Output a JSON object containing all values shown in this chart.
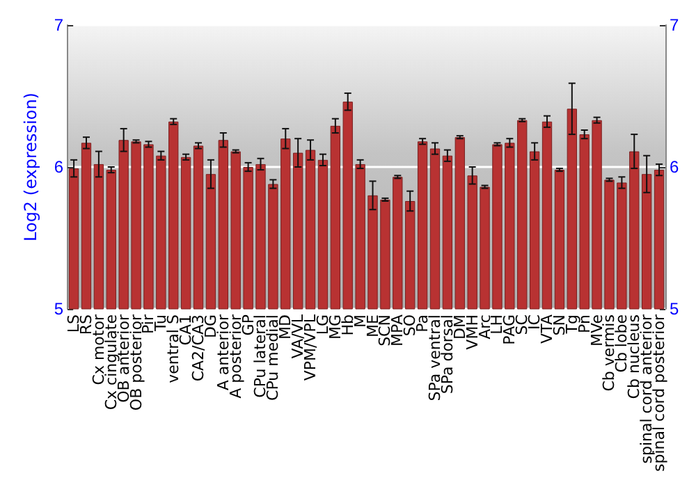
{
  "chart_data": {
    "type": "bar",
    "ylabel": "Log2 (expression)",
    "categories": [
      "LS",
      "RS",
      "Cx motor",
      "Cx cingulate",
      "OB anterior",
      "OB posterior",
      "Pir",
      "Tu",
      "ventral S",
      "CA1",
      "CA2/CA3",
      "DG",
      "A anterior",
      "A posterior",
      "GP",
      "CPu lateral",
      "CPu medial",
      "MD",
      "VA/VL",
      "VPM/VPL",
      "LG",
      "MG",
      "Hb",
      "M",
      "ME",
      "SCN",
      "MPA",
      "SO",
      "Pa",
      "SPa ventral",
      "SPa dorsal",
      "DM",
      "VMH",
      "Arc",
      "LH",
      "PAG",
      "SC",
      "IC",
      "VTA",
      "SN",
      "Tg",
      "Pn",
      "MVe",
      "Cb vermis",
      "Cb lobe",
      "Cb nucleus",
      "spinal cord anterior",
      "spinal cord posterior"
    ],
    "values": [
      5.99,
      6.17,
      6.02,
      5.98,
      6.19,
      6.18,
      6.16,
      6.08,
      6.32,
      6.07,
      6.15,
      5.95,
      6.19,
      6.11,
      6.0,
      6.02,
      5.88,
      6.2,
      6.1,
      6.12,
      6.05,
      6.29,
      6.46,
      6.02,
      5.8,
      5.77,
      5.93,
      5.76,
      6.18,
      6.13,
      6.08,
      6.21,
      5.94,
      5.86,
      6.16,
      6.17,
      6.33,
      6.11,
      6.32,
      5.98,
      6.41,
      6.23,
      6.33,
      5.91,
      5.89,
      6.11,
      5.95,
      5.98
    ],
    "errors": [
      0.06,
      0.04,
      0.09,
      0.02,
      0.08,
      0.01,
      0.02,
      0.03,
      0.02,
      0.02,
      0.02,
      0.1,
      0.05,
      0.01,
      0.03,
      0.04,
      0.03,
      0.07,
      0.1,
      0.07,
      0.04,
      0.05,
      0.06,
      0.03,
      0.1,
      0.01,
      0.01,
      0.07,
      0.02,
      0.04,
      0.04,
      0.01,
      0.06,
      0.01,
      0.01,
      0.03,
      0.01,
      0.06,
      0.04,
      0.01,
      0.18,
      0.03,
      0.02,
      0.01,
      0.04,
      0.12,
      0.13,
      0.04
    ],
    "color": "#b83232",
    "ylim": [
      5,
      7
    ],
    "yticks": [
      5,
      6,
      7
    ],
    "y2lim": [
      5,
      7
    ],
    "y2ticks": [
      5,
      6,
      7
    ],
    "grid": "y"
  }
}
